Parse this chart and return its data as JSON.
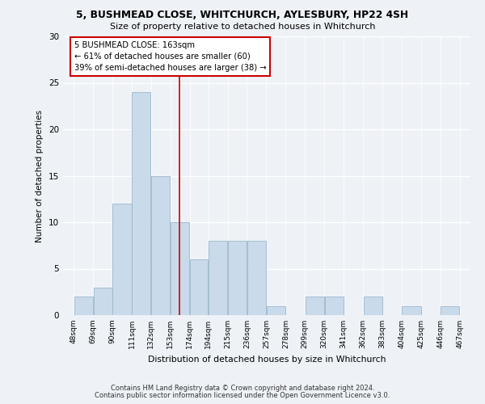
{
  "title": "5, BUSHMEAD CLOSE, WHITCHURCH, AYLESBURY, HP22 4SH",
  "subtitle": "Size of property relative to detached houses in Whitchurch",
  "xlabel": "Distribution of detached houses by size in Whitchurch",
  "ylabel": "Number of detached properties",
  "bar_color": "#c9daea",
  "bar_edge_color": "#9ab8cc",
  "bins": [
    48,
    69,
    90,
    111,
    132,
    153,
    174,
    194,
    215,
    236,
    257,
    278,
    299,
    320,
    341,
    362,
    383,
    404,
    425,
    446,
    467
  ],
  "counts": [
    2,
    3,
    12,
    24,
    15,
    10,
    6,
    8,
    8,
    8,
    1,
    0,
    2,
    2,
    0,
    2,
    0,
    1,
    0,
    1
  ],
  "tick_labels": [
    "48sqm",
    "69sqm",
    "90sqm",
    "111sqm",
    "132sqm",
    "153sqm",
    "174sqm",
    "194sqm",
    "215sqm",
    "236sqm",
    "257sqm",
    "278sqm",
    "299sqm",
    "320sqm",
    "341sqm",
    "362sqm",
    "383sqm",
    "404sqm",
    "425sqm",
    "446sqm",
    "467sqm"
  ],
  "property_line_x": 163,
  "annotation_line1": "5 BUSHMEAD CLOSE: 163sqm",
  "annotation_line2": "← 61% of detached houses are smaller (60)",
  "annotation_line3": "39% of semi-detached houses are larger (38) →",
  "annotation_box_color": "#ffffff",
  "annotation_box_edgecolor": "#cc0000",
  "vline_color": "#cc0000",
  "ylim": [
    0,
    30
  ],
  "yticks": [
    0,
    5,
    10,
    15,
    20,
    25,
    30
  ],
  "footer1": "Contains HM Land Registry data © Crown copyright and database right 2024.",
  "footer2": "Contains public sector information licensed under the Open Government Licence v3.0.",
  "bg_color": "#eef2f7",
  "grid_color": "#ffffff"
}
